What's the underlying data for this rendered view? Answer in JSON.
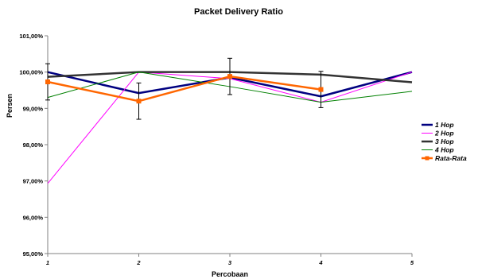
{
  "chart_data": {
    "type": "line",
    "title": "Packet Delivery Ratio",
    "xlabel": "Percobaan",
    "ylabel": "Persen",
    "x": [
      1,
      2,
      3,
      4,
      5
    ],
    "x_tick_labels": [
      "1",
      "2",
      "3",
      "4",
      "5"
    ],
    "ylim": [
      95,
      101
    ],
    "y_ticks": [
      95,
      96,
      97,
      98,
      99,
      100,
      101
    ],
    "y_tick_labels": [
      "95,00%",
      "96,00%",
      "97,00%",
      "98,00%",
      "99,00%",
      "100,00%",
      "101,00%"
    ],
    "grid": false,
    "legend_position": "right",
    "series": [
      {
        "name": "1 Hop",
        "color": "#000080",
        "values": [
          100.0,
          99.42,
          99.85,
          99.33,
          100.0
        ]
      },
      {
        "name": "2 Hop",
        "color": "#ff00ff",
        "values": [
          96.93,
          100.0,
          99.82,
          99.17,
          100.0
        ]
      },
      {
        "name": "3 Hop",
        "color": "#333333",
        "values": [
          99.87,
          100.0,
          100.0,
          99.93,
          99.72
        ]
      },
      {
        "name": "4 Hop",
        "color": "#008000",
        "values": [
          99.3,
          100.0,
          99.6,
          99.17,
          99.47
        ]
      },
      {
        "name": "Rata-Rata",
        "color": "#ff6600",
        "marker": "square",
        "values": [
          99.73,
          99.2,
          99.88,
          99.52,
          null
        ],
        "error": [
          0.5,
          0.5,
          0.5,
          0.5,
          null
        ]
      }
    ]
  }
}
